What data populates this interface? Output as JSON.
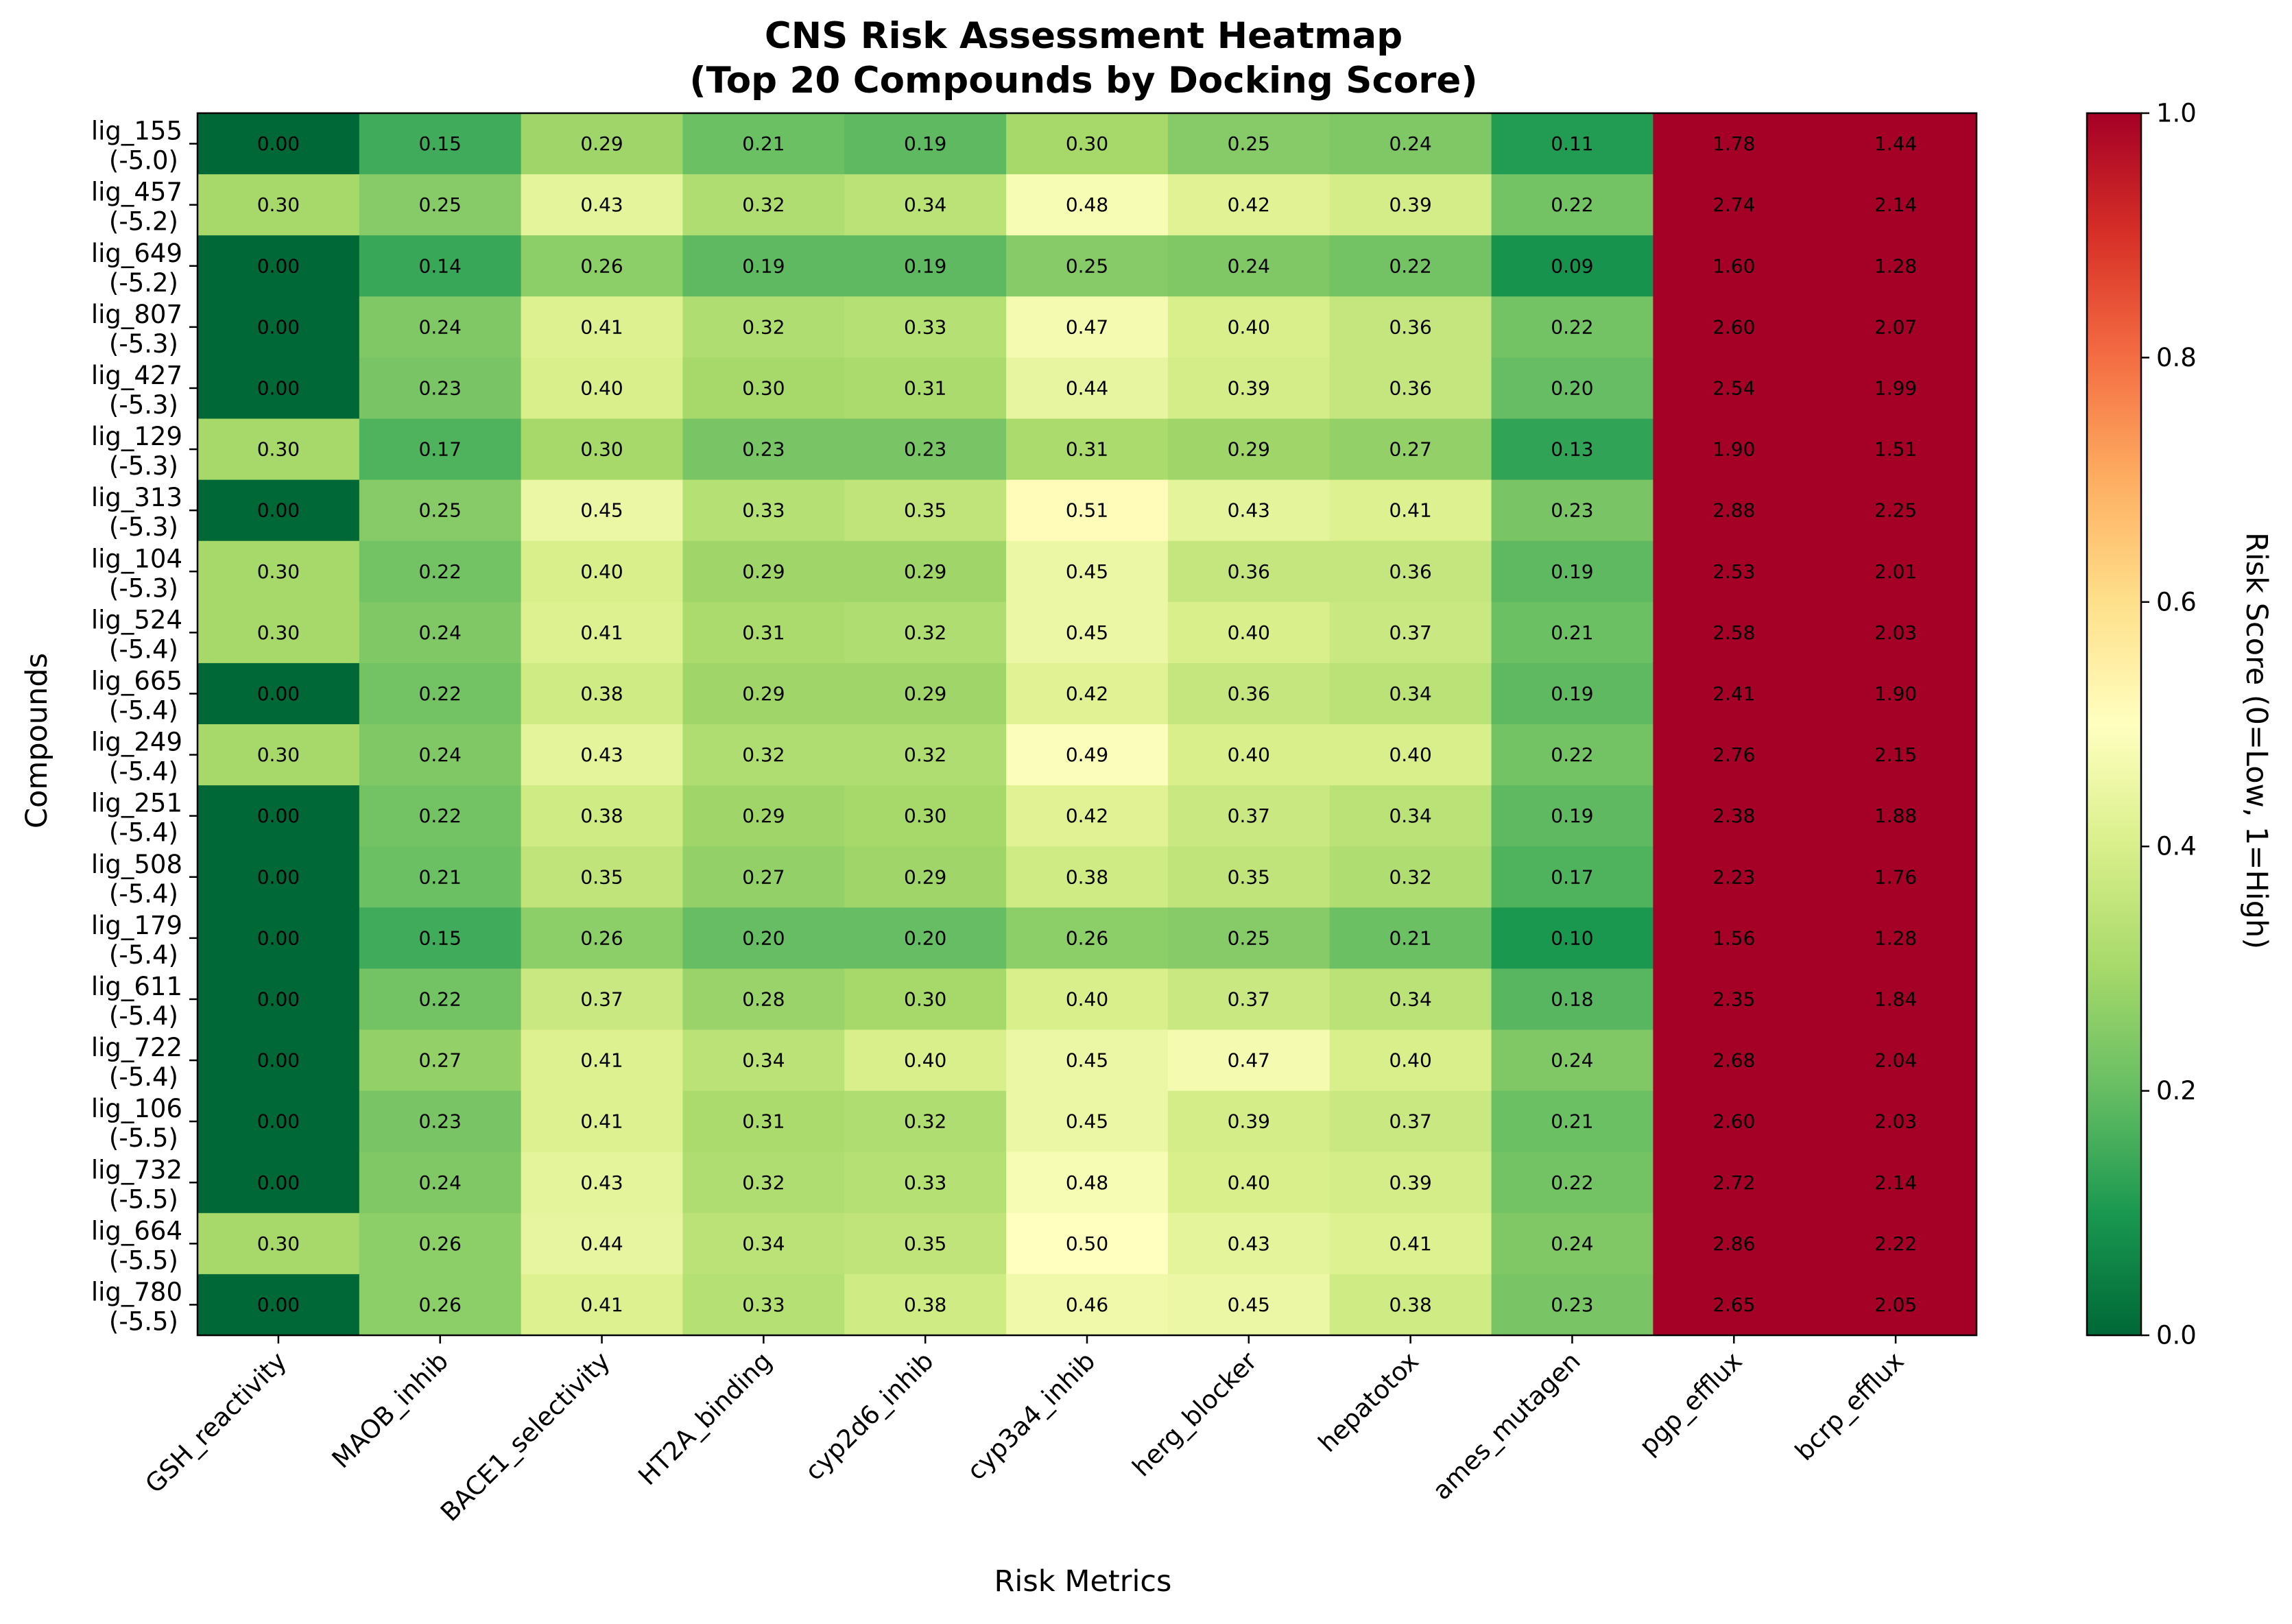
{
  "chart_data": {
    "type": "heatmap",
    "title_line1": "CNS Risk Assessment Heatmap",
    "title_line2": "(Top 20 Compounds by Docking Score)",
    "xlabel": "Risk Metrics",
    "ylabel": "Compounds",
    "colorbar_label": "Risk Score (0=Low, 1=High)",
    "colorbar_ticks": [
      "0.0",
      "0.2",
      "0.4",
      "0.6",
      "0.8",
      "1.0"
    ],
    "colormap": "RdYlGn_r",
    "value_range": [
      0,
      1
    ],
    "metrics": [
      "GSH_reactivity",
      "MAOB_inhib",
      "BACE1_selectivity",
      "HT2A_binding",
      "cyp2d6_inhib",
      "cyp3a4_inhib",
      "herg_blocker",
      "hepatotox",
      "ames_mutagen",
      "pgp_efflux",
      "bcrp_efflux"
    ],
    "compounds": [
      {
        "name": "lig_155",
        "score": "(-5.0)"
      },
      {
        "name": "lig_457",
        "score": "(-5.2)"
      },
      {
        "name": "lig_649",
        "score": "(-5.2)"
      },
      {
        "name": "lig_807",
        "score": "(-5.3)"
      },
      {
        "name": "lig_427",
        "score": "(-5.3)"
      },
      {
        "name": "lig_129",
        "score": "(-5.3)"
      },
      {
        "name": "lig_313",
        "score": "(-5.3)"
      },
      {
        "name": "lig_104",
        "score": "(-5.3)"
      },
      {
        "name": "lig_524",
        "score": "(-5.4)"
      },
      {
        "name": "lig_665",
        "score": "(-5.4)"
      },
      {
        "name": "lig_249",
        "score": "(-5.4)"
      },
      {
        "name": "lig_251",
        "score": "(-5.4)"
      },
      {
        "name": "lig_508",
        "score": "(-5.4)"
      },
      {
        "name": "lig_179",
        "score": "(-5.4)"
      },
      {
        "name": "lig_611",
        "score": "(-5.4)"
      },
      {
        "name": "lig_722",
        "score": "(-5.4)"
      },
      {
        "name": "lig_106",
        "score": "(-5.5)"
      },
      {
        "name": "lig_732",
        "score": "(-5.5)"
      },
      {
        "name": "lig_664",
        "score": "(-5.5)"
      },
      {
        "name": "lig_780",
        "score": "(-5.5)"
      }
    ],
    "values": [
      [
        0.0,
        0.15,
        0.29,
        0.21,
        0.19,
        0.3,
        0.25,
        0.24,
        0.11,
        1.78,
        1.44
      ],
      [
        0.3,
        0.25,
        0.43,
        0.32,
        0.34,
        0.48,
        0.42,
        0.39,
        0.22,
        2.74,
        2.14
      ],
      [
        0.0,
        0.14,
        0.26,
        0.19,
        0.19,
        0.25,
        0.24,
        0.22,
        0.09,
        1.6,
        1.28
      ],
      [
        0.0,
        0.24,
        0.41,
        0.32,
        0.33,
        0.47,
        0.4,
        0.36,
        0.22,
        2.6,
        2.07
      ],
      [
        0.0,
        0.23,
        0.4,
        0.3,
        0.31,
        0.44,
        0.39,
        0.36,
        0.2,
        2.54,
        1.99
      ],
      [
        0.3,
        0.17,
        0.3,
        0.23,
        0.23,
        0.31,
        0.29,
        0.27,
        0.13,
        1.9,
        1.51
      ],
      [
        0.0,
        0.25,
        0.45,
        0.33,
        0.35,
        0.51,
        0.43,
        0.41,
        0.23,
        2.88,
        2.25
      ],
      [
        0.3,
        0.22,
        0.4,
        0.29,
        0.29,
        0.45,
        0.36,
        0.36,
        0.19,
        2.53,
        2.01
      ],
      [
        0.3,
        0.24,
        0.41,
        0.31,
        0.32,
        0.45,
        0.4,
        0.37,
        0.21,
        2.58,
        2.03
      ],
      [
        0.0,
        0.22,
        0.38,
        0.29,
        0.29,
        0.42,
        0.36,
        0.34,
        0.19,
        2.41,
        1.9
      ],
      [
        0.3,
        0.24,
        0.43,
        0.32,
        0.32,
        0.49,
        0.4,
        0.4,
        0.22,
        2.76,
        2.15
      ],
      [
        0.0,
        0.22,
        0.38,
        0.29,
        0.3,
        0.42,
        0.37,
        0.34,
        0.19,
        2.38,
        1.88
      ],
      [
        0.0,
        0.21,
        0.35,
        0.27,
        0.29,
        0.38,
        0.35,
        0.32,
        0.17,
        2.23,
        1.76
      ],
      [
        0.0,
        0.15,
        0.26,
        0.2,
        0.2,
        0.26,
        0.25,
        0.21,
        0.1,
        1.56,
        1.28
      ],
      [
        0.0,
        0.22,
        0.37,
        0.28,
        0.3,
        0.4,
        0.37,
        0.34,
        0.18,
        2.35,
        1.84
      ],
      [
        0.0,
        0.27,
        0.41,
        0.34,
        0.4,
        0.45,
        0.47,
        0.4,
        0.24,
        2.68,
        2.04
      ],
      [
        0.0,
        0.23,
        0.41,
        0.31,
        0.32,
        0.45,
        0.39,
        0.37,
        0.21,
        2.6,
        2.03
      ],
      [
        0.0,
        0.24,
        0.43,
        0.32,
        0.33,
        0.48,
        0.4,
        0.39,
        0.22,
        2.72,
        2.14
      ],
      [
        0.3,
        0.26,
        0.44,
        0.34,
        0.35,
        0.5,
        0.43,
        0.41,
        0.24,
        2.86,
        2.22
      ],
      [
        0.0,
        0.26,
        0.41,
        0.33,
        0.38,
        0.46,
        0.45,
        0.38,
        0.23,
        2.65,
        2.05
      ]
    ]
  }
}
